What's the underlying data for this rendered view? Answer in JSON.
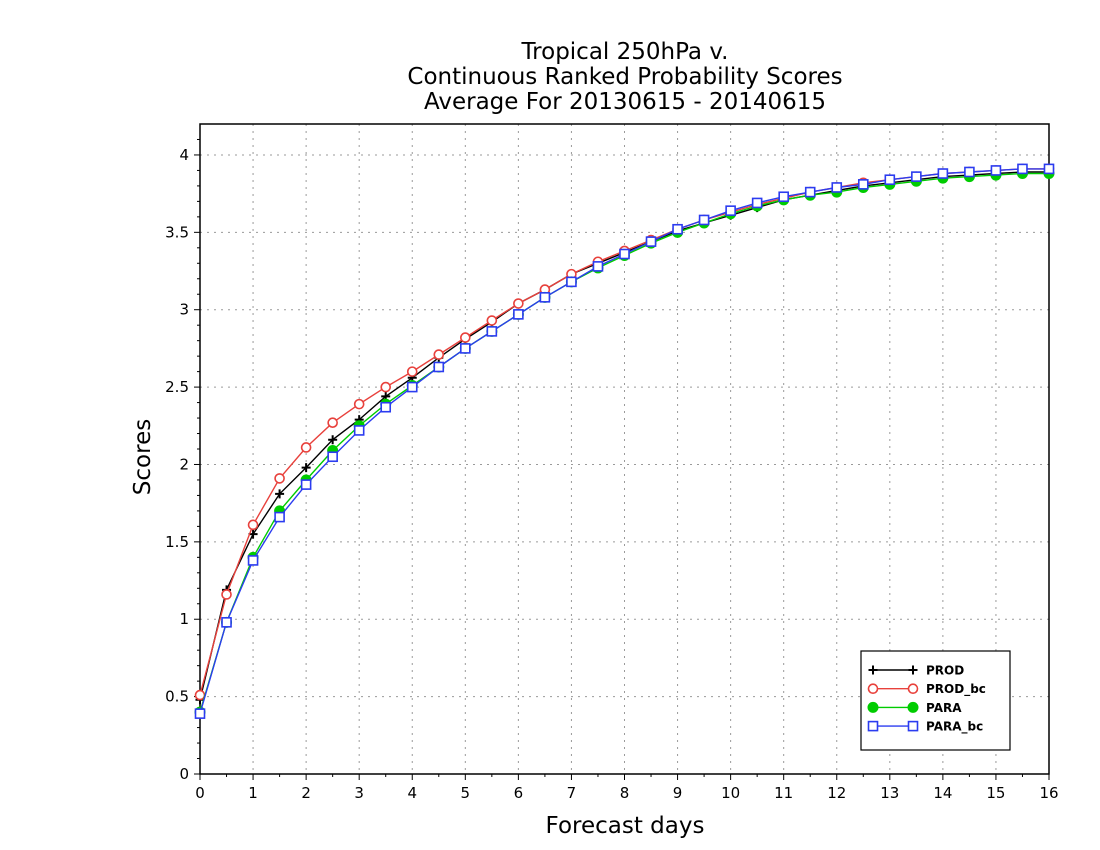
{
  "chart_data": {
    "type": "line",
    "title": [
      "Tropical 250hPa v.",
      "Continuous Ranked Probability Scores",
      "Average For 20130615 - 20140615"
    ],
    "xlabel": "Forecast days",
    "ylabel": "Scores",
    "xlim": [
      0,
      16
    ],
    "ylim": [
      0,
      4.2
    ],
    "xticks": [
      "0",
      "1",
      "2",
      "3",
      "4",
      "5",
      "6",
      "7",
      "8",
      "9",
      "10",
      "11",
      "12",
      "13",
      "14",
      "15",
      "16"
    ],
    "yticks": [
      "0",
      "0.5",
      "1",
      "1.5",
      "2",
      "2.5",
      "3",
      "3.5",
      "4"
    ],
    "grid": true,
    "legend_position": "bottom-right",
    "x": [
      0,
      0.5,
      1,
      1.5,
      2,
      2.5,
      3,
      3.5,
      4,
      4.5,
      5,
      5.5,
      6,
      6.5,
      7,
      7.5,
      8,
      8.5,
      9,
      9.5,
      10,
      10.5,
      11,
      11.5,
      12,
      12.5,
      13,
      13.5,
      14,
      14.5,
      15,
      15.5,
      16
    ],
    "series": [
      {
        "name": "PROD",
        "color": "#000000",
        "marker": "plus",
        "values": [
          0.48,
          1.19,
          1.55,
          1.81,
          1.98,
          2.16,
          2.29,
          2.44,
          2.56,
          2.69,
          2.81,
          2.92,
          3.04,
          3.13,
          3.23,
          3.3,
          3.37,
          3.44,
          3.51,
          3.56,
          3.61,
          3.66,
          3.71,
          3.74,
          3.77,
          3.8,
          3.82,
          3.84,
          3.86,
          3.87,
          3.88,
          3.89,
          3.89
        ]
      },
      {
        "name": "PROD_bc",
        "color": "#e8413c",
        "marker": "circle-open",
        "values": [
          0.51,
          1.16,
          1.61,
          1.91,
          2.11,
          2.27,
          2.39,
          2.5,
          2.6,
          2.71,
          2.82,
          2.93,
          3.04,
          3.13,
          3.23,
          3.31,
          3.38,
          3.45,
          3.52,
          3.58,
          3.63,
          3.68,
          3.72,
          3.76,
          3.79,
          3.82,
          3.84,
          3.86,
          3.88,
          3.89,
          3.9,
          3.91,
          3.91
        ]
      },
      {
        "name": "PARA",
        "color": "#00cc00",
        "marker": "circle-filled",
        "values": [
          0.4,
          0.98,
          1.4,
          1.7,
          1.9,
          2.09,
          2.25,
          2.39,
          2.51,
          2.63,
          2.75,
          2.86,
          2.97,
          3.08,
          3.18,
          3.27,
          3.35,
          3.43,
          3.5,
          3.56,
          3.62,
          3.67,
          3.71,
          3.74,
          3.76,
          3.79,
          3.81,
          3.83,
          3.85,
          3.86,
          3.87,
          3.88,
          3.88
        ]
      },
      {
        "name": "PARA_bc",
        "color": "#2b3cf0",
        "marker": "square-open",
        "values": [
          0.39,
          0.98,
          1.38,
          1.66,
          1.87,
          2.05,
          2.22,
          2.37,
          2.5,
          2.63,
          2.75,
          2.86,
          2.97,
          3.08,
          3.18,
          3.28,
          3.36,
          3.44,
          3.52,
          3.58,
          3.64,
          3.69,
          3.73,
          3.76,
          3.79,
          3.81,
          3.84,
          3.86,
          3.88,
          3.89,
          3.9,
          3.91,
          3.91
        ]
      }
    ]
  }
}
